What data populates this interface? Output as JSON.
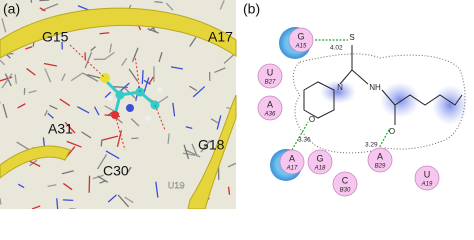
{
  "panel_a": {
    "label": "(a)",
    "residue_labels": [
      "G15",
      "A17",
      "A31",
      "G18",
      "C30",
      "U19"
    ]
  },
  "panel_b": {
    "label": "(b)",
    "residues": [
      {
        "base": "G",
        "id": "A15"
      },
      {
        "base": "U",
        "id": "B27"
      },
      {
        "base": "A",
        "id": "A36"
      },
      {
        "base": "A",
        "id": "A17"
      },
      {
        "base": "G",
        "id": "A18"
      },
      {
        "base": "C",
        "id": "B30"
      },
      {
        "base": "A",
        "id": "B29"
      },
      {
        "base": "U",
        "id": "A19"
      }
    ],
    "distances": [
      "4.02",
      "3.36",
      "3.29"
    ],
    "atoms": [
      "S",
      "N",
      "NH",
      "O",
      "O"
    ]
  }
}
